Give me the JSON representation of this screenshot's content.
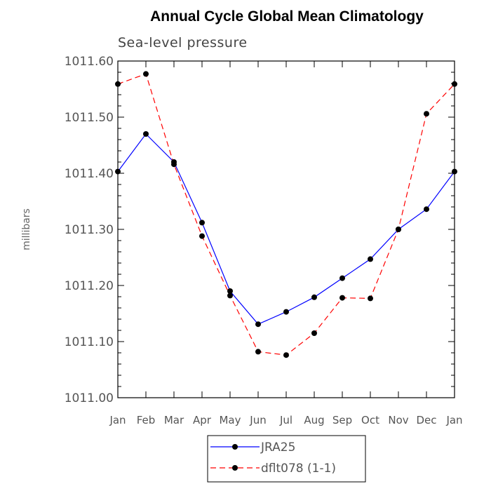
{
  "chart_data": {
    "type": "line",
    "title": "Annual Cycle Global Mean Climatology",
    "subtitle": "Sea-level pressure",
    "xlabel": "",
    "ylabel": "millibars",
    "categories": [
      "Jan",
      "Feb",
      "Mar",
      "Apr",
      "May",
      "Jun",
      "Jul",
      "Aug",
      "Sep",
      "Oct",
      "Nov",
      "Dec",
      "Jan"
    ],
    "ylim": [
      1011.0,
      1011.6
    ],
    "yticks": [
      1011.0,
      1011.1,
      1011.2,
      1011.3,
      1011.4,
      1011.5,
      1011.6
    ],
    "ytick_labels": [
      "1011.00",
      "1011.10",
      "1011.20",
      "1011.30",
      "1011.40",
      "1011.50",
      "1011.60"
    ],
    "grid": false,
    "legend_position": "bottom-center",
    "series": [
      {
        "name": "JRA25",
        "color": "#0000ff",
        "dash": "solid",
        "values": [
          1011.403,
          1011.47,
          1011.42,
          1011.312,
          1011.19,
          1011.131,
          1011.153,
          1011.179,
          1011.213,
          1011.247,
          1011.3,
          1011.336,
          1011.403
        ]
      },
      {
        "name": "dflt078 (1-1)",
        "color": "#ff0000",
        "dash": "dashed",
        "values": [
          1011.559,
          1011.577,
          1011.416,
          1011.288,
          1011.182,
          1011.082,
          1011.076,
          1011.115,
          1011.178,
          1011.177,
          1011.3,
          1011.506,
          1011.559
        ]
      }
    ]
  }
}
